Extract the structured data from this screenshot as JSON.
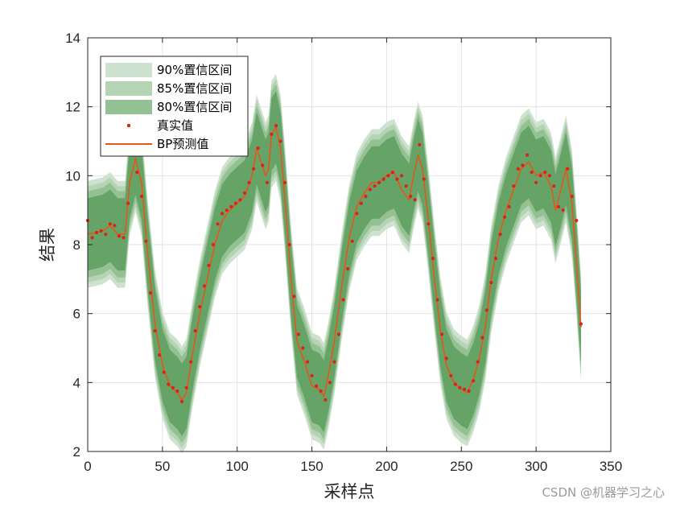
{
  "chart_data": {
    "type": "line",
    "title": "",
    "xlabel": "采样点",
    "ylabel": "结果",
    "xlim": [
      0,
      350
    ],
    "ylim": [
      2,
      14
    ],
    "xticks": [
      0,
      50,
      100,
      150,
      200,
      250,
      300,
      350
    ],
    "yticks": [
      2,
      4,
      6,
      8,
      10,
      12,
      14
    ],
    "grid": true,
    "legend_position": "top-left",
    "colors": {
      "band_90": "#cfe2cf",
      "band_85": "#b4d4b4",
      "band_80": "#93c193",
      "band_core": "#66a366",
      "actual": "#e0201b",
      "predicted": "#e2581a"
    },
    "legend": [
      {
        "label": "90%置信区间",
        "kind": "band",
        "color": "#cfe2cf"
      },
      {
        "label": "85%置信区间",
        "kind": "band",
        "color": "#b4d4b4"
      },
      {
        "label": "80%置信区间",
        "kind": "band",
        "color": "#93c193"
      },
      {
        "label": "真实值",
        "kind": "dot",
        "color": "#e0201b"
      },
      {
        "label": "BP预测值",
        "kind": "line",
        "color": "#e2581a"
      }
    ],
    "bands": [
      {
        "name": "90%置信区间",
        "half_width": 1.55
      },
      {
        "name": "85%置信区间",
        "half_width": 1.4
      },
      {
        "name": "80%置信区间",
        "half_width": 1.25
      }
    ],
    "core_band_half_width": 1.05,
    "predicted": {
      "name": "BP预测值",
      "x": [
        0,
        5,
        10,
        15,
        20,
        25,
        28,
        32,
        36,
        40,
        45,
        50,
        55,
        60,
        63,
        66,
        70,
        75,
        80,
        85,
        90,
        95,
        100,
        105,
        110,
        113,
        116,
        119,
        121,
        123,
        126,
        129,
        132,
        136,
        140,
        145,
        150,
        155,
        158,
        161,
        165,
        170,
        175,
        180,
        185,
        190,
        195,
        200,
        205,
        210,
        215,
        218,
        221,
        224,
        228,
        232,
        236,
        240,
        245,
        250,
        254,
        258,
        262,
        266,
        270,
        275,
        280,
        285,
        290,
        295,
        300,
        305,
        310,
        313,
        316,
        320,
        324,
        327,
        330
      ],
      "y": [
        8.3,
        8.35,
        8.4,
        8.55,
        8.3,
        8.3,
        9.8,
        10.5,
        9.8,
        7.8,
        5.7,
        4.5,
        3.9,
        3.7,
        3.5,
        3.7,
        4.8,
        6.0,
        7.0,
        8.0,
        8.7,
        9.0,
        9.2,
        9.4,
        10.0,
        10.8,
        10.4,
        10.0,
        10.2,
        11.2,
        11.4,
        10.8,
        9.3,
        7.0,
        5.2,
        4.6,
        3.9,
        3.8,
        3.6,
        4.2,
        5.2,
        6.8,
        8.2,
        9.1,
        9.5,
        9.8,
        9.8,
        10.0,
        10.1,
        9.6,
        9.3,
        10.0,
        10.6,
        10.2,
        8.7,
        7.0,
        5.5,
        4.5,
        4.0,
        3.8,
        3.7,
        4.1,
        4.7,
        5.6,
        7.0,
        8.2,
        9.0,
        9.6,
        10.2,
        10.4,
        10.0,
        10.1,
        9.7,
        9.0,
        9.5,
        10.2,
        9.2,
        7.5,
        5.6
      ]
    },
    "actual": {
      "name": "真实值",
      "x": [
        0,
        3,
        6,
        9,
        12,
        15,
        18,
        21,
        24,
        27,
        30,
        33,
        36,
        39,
        42,
        45,
        48,
        51,
        54,
        57,
        60,
        63,
        66,
        69,
        72,
        75,
        78,
        81,
        84,
        87,
        90,
        93,
        96,
        99,
        102,
        105,
        108,
        111,
        114,
        117,
        120,
        123,
        126,
        129,
        132,
        135,
        138,
        141,
        144,
        147,
        150,
        153,
        156,
        159,
        162,
        165,
        168,
        171,
        174,
        177,
        180,
        183,
        186,
        189,
        192,
        195,
        198,
        201,
        204,
        207,
        210,
        213,
        216,
        219,
        222,
        225,
        228,
        231,
        234,
        237,
        240,
        243,
        246,
        249,
        252,
        255,
        258,
        261,
        264,
        267,
        270,
        273,
        276,
        279,
        282,
        285,
        288,
        291,
        294,
        297,
        300,
        303,
        306,
        309,
        312,
        315,
        318,
        321,
        324,
        327,
        330
      ],
      "y": [
        8.7,
        8.2,
        8.35,
        8.4,
        8.3,
        8.6,
        8.55,
        8.25,
        8.2,
        9.2,
        10.6,
        10.1,
        9.4,
        8.1,
        6.6,
        5.5,
        4.8,
        4.3,
        3.95,
        3.85,
        3.75,
        3.45,
        3.85,
        4.6,
        5.5,
        6.2,
        6.8,
        7.4,
        8.0,
        8.6,
        8.9,
        9.0,
        9.1,
        9.2,
        9.3,
        9.5,
        9.8,
        10.2,
        10.8,
        10.3,
        9.8,
        11.2,
        11.45,
        11.0,
        9.8,
        8.0,
        6.5,
        5.4,
        5.0,
        4.6,
        4.2,
        3.9,
        3.75,
        3.5,
        4.0,
        4.6,
        5.4,
        6.4,
        7.3,
        8.1,
        8.9,
        9.2,
        9.4,
        9.6,
        9.7,
        9.8,
        9.9,
        10.0,
        10.1,
        9.9,
        10.0,
        9.7,
        9.4,
        9.3,
        10.9,
        9.9,
        8.6,
        7.6,
        6.4,
        5.4,
        4.7,
        4.2,
        3.95,
        3.85,
        3.8,
        3.75,
        4.05,
        4.6,
        5.3,
        6.1,
        6.9,
        7.6,
        8.3,
        8.8,
        9.1,
        9.7,
        10.2,
        10.3,
        10.6,
        10.1,
        9.8,
        10.0,
        10.1,
        10.0,
        9.7,
        9.1,
        9.0,
        10.2,
        9.4,
        8.7,
        5.7
      ]
    }
  },
  "watermark": "CSDN @机器学习之心"
}
